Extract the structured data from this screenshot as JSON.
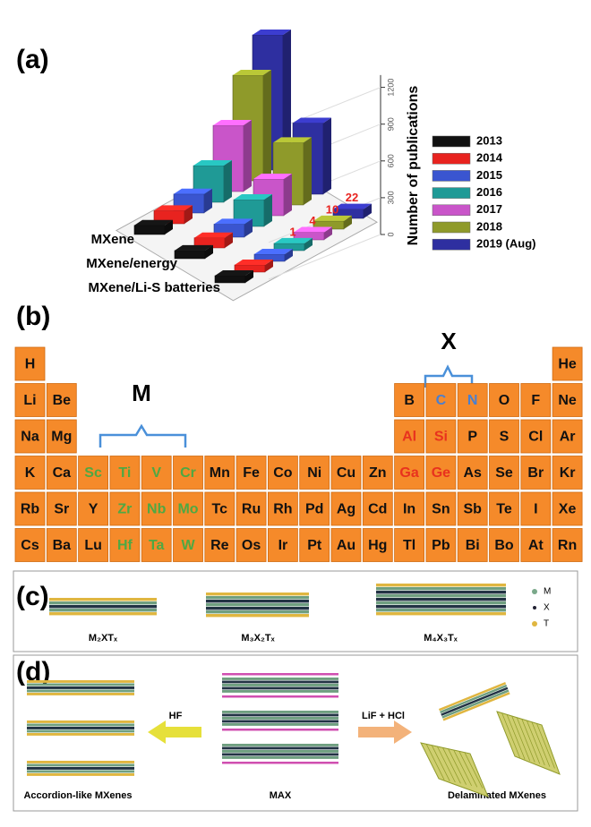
{
  "chart_data": {
    "type": "bar3d",
    "label": "(a)",
    "categories": [
      "MXene",
      "MXene/energy",
      "MXene/Li-S batteries"
    ],
    "series": [
      {
        "name": "2013",
        "color": "#111111",
        "values": [
          20,
          10,
          0
        ]
      },
      {
        "name": "2014",
        "color": "#e8231f",
        "values": [
          60,
          30,
          0
        ]
      },
      {
        "name": "2015",
        "color": "#3a55d0",
        "values": [
          120,
          60,
          0
        ]
      },
      {
        "name": "2016",
        "color": "#1f9a96",
        "values": [
          300,
          200,
          1
        ]
      },
      {
        "name": "2017",
        "color": "#c955c9",
        "values": [
          600,
          300,
          4
        ]
      },
      {
        "name": "2018",
        "color": "#8f9a2a",
        "values": [
          1000,
          560,
          10
        ]
      },
      {
        "name": "2019 (Aug)",
        "color": "#2e2fa0",
        "values": [
          1300,
          650,
          22
        ]
      }
    ],
    "zlabel": "Number of publications",
    "zlim": [
      0,
      1300
    ],
    "zticks": [
      0,
      300,
      600,
      900,
      1200
    ]
  },
  "panel_b": {
    "label": "(b)",
    "annotations": [
      "M",
      "X"
    ],
    "rows": [
      [
        "H",
        null,
        null,
        null,
        null,
        null,
        null,
        null,
        null,
        null,
        null,
        null,
        null,
        null,
        null,
        null,
        null,
        "He"
      ],
      [
        "Li",
        "Be",
        null,
        null,
        null,
        null,
        null,
        null,
        null,
        null,
        null,
        null,
        "B",
        {
          "symbol": "C",
          "color": "#4a7fd0"
        },
        {
          "symbol": "N",
          "color": "#4a7fd0"
        },
        "O",
        "F",
        "Ne"
      ],
      [
        "Na",
        "Mg",
        null,
        null,
        null,
        null,
        null,
        null,
        null,
        null,
        null,
        null,
        {
          "symbol": "Al",
          "color": "#e8321e"
        },
        {
          "symbol": "Si",
          "color": "#e8321e"
        },
        "P",
        "S",
        "Cl",
        "Ar"
      ],
      [
        "K",
        "Ca",
        {
          "symbol": "Sc",
          "color": "#4fa843"
        },
        {
          "symbol": "Ti",
          "color": "#4fa843"
        },
        {
          "symbol": "V",
          "color": "#4fa843"
        },
        {
          "symbol": "Cr",
          "color": "#4fa843"
        },
        "Mn",
        "Fe",
        "Co",
        "Ni",
        "Cu",
        "Zn",
        {
          "symbol": "Ga",
          "color": "#e8321e"
        },
        {
          "symbol": "Ge",
          "color": "#e8321e"
        },
        "As",
        "Se",
        "Br",
        "Kr"
      ],
      [
        "Rb",
        "Sr",
        "Y",
        {
          "symbol": "Zr",
          "color": "#4fa843"
        },
        {
          "symbol": "Nb",
          "color": "#4fa843"
        },
        {
          "symbol": "Mo",
          "color": "#4fa843"
        },
        "Tc",
        "Ru",
        "Rh",
        "Pd",
        "Ag",
        "Cd",
        "In",
        "Sn",
        "Sb",
        "Te",
        "I",
        "Xe"
      ],
      [
        "Cs",
        "Ba",
        "Lu",
        {
          "symbol": "Hf",
          "color": "#4fa843"
        },
        {
          "symbol": "Ta",
          "color": "#4fa843"
        },
        {
          "symbol": "W",
          "color": "#4fa843"
        },
        "Re",
        "Os",
        "Ir",
        "Pt",
        "Au",
        "Hg",
        "Tl",
        "Pb",
        "Bi",
        "Bo",
        "At",
        "Rn"
      ]
    ]
  },
  "panel_c": {
    "label": "(c)",
    "structures": [
      "M₂XTₓ",
      "M₃X₂Tₓ",
      "M₄X₃Tₓ"
    ],
    "legend": [
      "M",
      "X",
      "T"
    ]
  },
  "panel_d": {
    "label": "(d)",
    "labels": [
      "Accordion-like MXenes",
      "MAX",
      "Delaminated MXenes"
    ],
    "arrows": [
      "HF",
      "LiF + HCl"
    ]
  }
}
